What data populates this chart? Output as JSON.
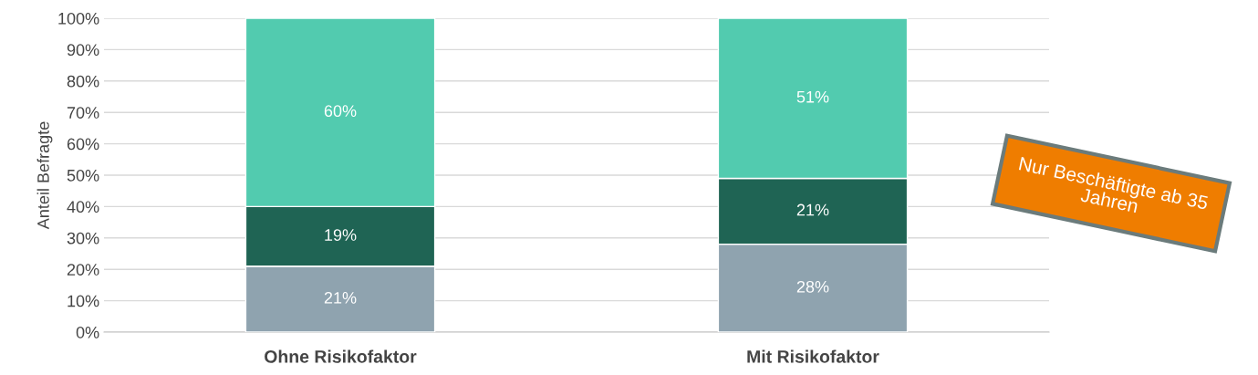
{
  "chart_data": {
    "type": "bar",
    "stacked": true,
    "categories": [
      "Ohne Risikofaktor",
      "Mit Risikofaktor"
    ],
    "series": [
      {
        "color": "#8fa3af",
        "values": [
          21,
          28
        ],
        "value_labels": [
          "21%",
          "28%"
        ]
      },
      {
        "color": "#1f6454",
        "values": [
          19,
          21
        ],
        "value_labels": [
          "19%",
          "21%"
        ]
      },
      {
        "color": "#52cbaf",
        "values": [
          60,
          51
        ],
        "value_labels": [
          "60%",
          "51%"
        ]
      }
    ],
    "ylabel": "Anteil Befragte",
    "ylim": [
      0,
      100
    ],
    "yticks": [
      {
        "value": 0,
        "label": "0%"
      },
      {
        "value": 10,
        "label": "10%"
      },
      {
        "value": 20,
        "label": "20%"
      },
      {
        "value": 30,
        "label": "30%"
      },
      {
        "value": 40,
        "label": "40%"
      },
      {
        "value": 50,
        "label": "50%"
      },
      {
        "value": 60,
        "label": "60%"
      },
      {
        "value": 70,
        "label": "70%"
      },
      {
        "value": 80,
        "label": "80%"
      },
      {
        "value": 90,
        "label": "90%"
      },
      {
        "value": 100,
        "label": "100%"
      }
    ],
    "grid": "y",
    "annotations": [
      "Nur Beschäftigte ab 35 Jahren"
    ]
  }
}
